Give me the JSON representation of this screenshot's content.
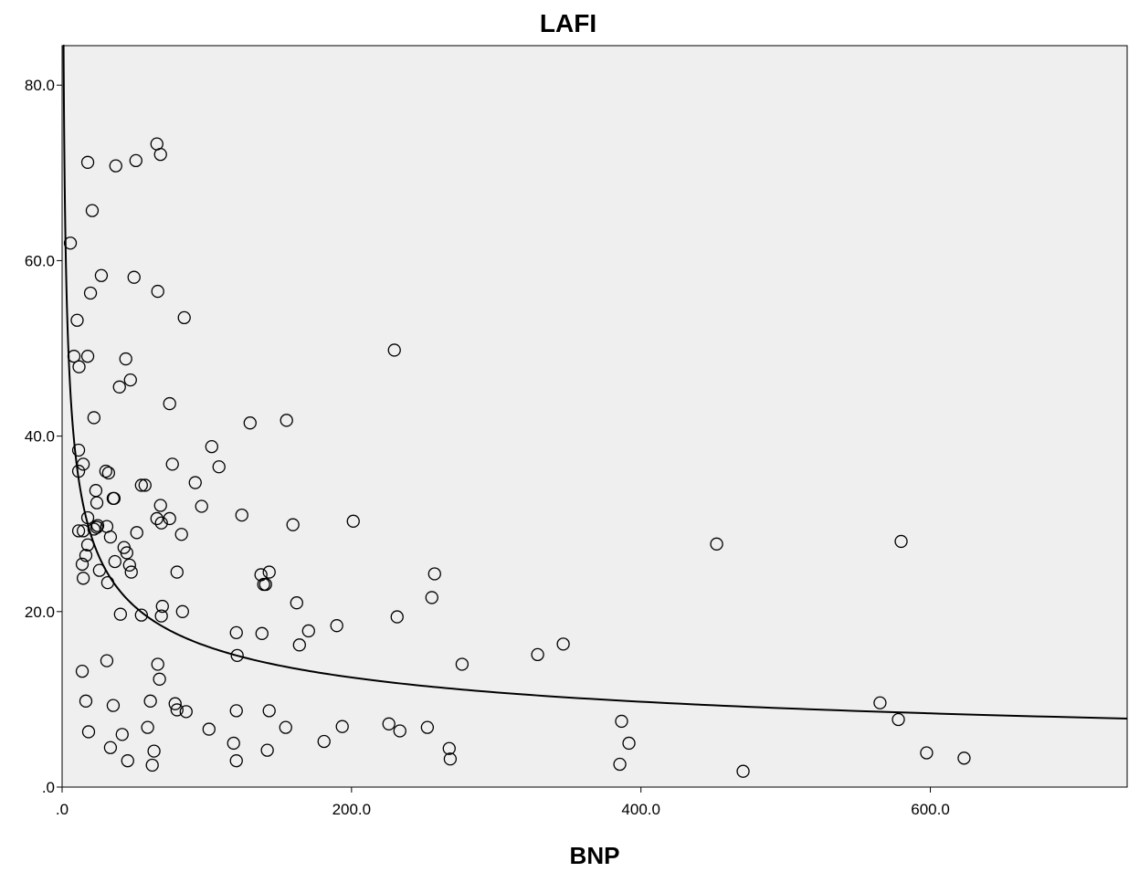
{
  "chart_data": {
    "type": "scatter",
    "title": "LAFI",
    "xlabel": "BNP",
    "ylabel": "",
    "xlim": [
      0,
      736
    ],
    "ylim": [
      0,
      84.5
    ],
    "x_ticks": [
      {
        "value": 0,
        "label": ".0"
      },
      {
        "value": 200,
        "label": "200.0"
      },
      {
        "value": 400,
        "label": "400.0"
      },
      {
        "value": 600,
        "label": "600.0"
      }
    ],
    "y_ticks": [
      {
        "value": 0,
        "label": ".0"
      },
      {
        "value": 20,
        "label": "20.0"
      },
      {
        "value": 40,
        "label": "40.0"
      },
      {
        "value": 60,
        "label": "60.0"
      },
      {
        "value": 80,
        "label": "80.0"
      }
    ],
    "grid": false,
    "legend": "none",
    "plot_background": "#efefef",
    "marker": "open-circle",
    "points": [
      [
        5.7,
        62.0
      ],
      [
        10.4,
        53.2
      ],
      [
        8.2,
        49.1
      ],
      [
        11.7,
        47.9
      ],
      [
        17.7,
        49.1
      ],
      [
        11.4,
        38.4
      ],
      [
        11.4,
        36.0
      ],
      [
        14.6,
        36.8
      ],
      [
        11.4,
        29.2
      ],
      [
        14.6,
        29.2
      ],
      [
        17.7,
        30.7
      ],
      [
        13.9,
        25.4
      ],
      [
        14.6,
        23.8
      ],
      [
        16.4,
        26.4
      ],
      [
        17.7,
        27.6
      ],
      [
        16.4,
        9.8
      ],
      [
        18.3,
        6.3
      ],
      [
        13.9,
        13.2
      ],
      [
        17.7,
        71.2
      ],
      [
        20.8,
        65.7
      ],
      [
        19.6,
        56.3
      ],
      [
        22.0,
        42.1
      ],
      [
        27.1,
        58.3
      ],
      [
        23.3,
        33.8
      ],
      [
        24.0,
        32.4
      ],
      [
        24.0,
        29.6
      ],
      [
        22.0,
        29.4
      ],
      [
        24.6,
        29.8
      ],
      [
        25.8,
        24.7
      ],
      [
        30.2,
        36.0
      ],
      [
        32.1,
        35.8
      ],
      [
        35.9,
        32.9
      ],
      [
        35.3,
        32.9
      ],
      [
        30.9,
        29.7
      ],
      [
        33.4,
        28.5
      ],
      [
        36.5,
        25.7
      ],
      [
        31.5,
        23.3
      ],
      [
        30.9,
        14.4
      ],
      [
        40.3,
        19.7
      ],
      [
        35.3,
        9.3
      ],
      [
        33.4,
        4.5
      ],
      [
        41.5,
        6.0
      ],
      [
        45.3,
        3.0
      ],
      [
        37.1,
        70.8
      ],
      [
        51.0,
        71.4
      ],
      [
        49.7,
        58.1
      ],
      [
        44.0,
        48.8
      ],
      [
        47.2,
        46.4
      ],
      [
        39.6,
        45.6
      ],
      [
        42.8,
        27.3
      ],
      [
        44.7,
        26.7
      ],
      [
        46.6,
        25.3
      ],
      [
        47.8,
        24.5
      ],
      [
        51.6,
        29.0
      ],
      [
        54.8,
        34.4
      ],
      [
        57.3,
        34.4
      ],
      [
        54.8,
        19.6
      ],
      [
        65.5,
        73.3
      ],
      [
        68.0,
        72.1
      ],
      [
        66.1,
        56.5
      ],
      [
        84.4,
        53.5
      ],
      [
        74.3,
        43.7
      ],
      [
        76.2,
        36.8
      ],
      [
        68.0,
        32.1
      ],
      [
        65.5,
        30.6
      ],
      [
        68.6,
        30.1
      ],
      [
        74.3,
        30.6
      ],
      [
        82.5,
        28.8
      ],
      [
        79.4,
        24.5
      ],
      [
        69.3,
        20.6
      ],
      [
        68.6,
        19.5
      ],
      [
        83.2,
        20.0
      ],
      [
        66.1,
        14.0
      ],
      [
        67.3,
        12.3
      ],
      [
        61.0,
        9.8
      ],
      [
        59.1,
        6.8
      ],
      [
        63.5,
        4.1
      ],
      [
        62.3,
        2.5
      ],
      [
        78.1,
        9.5
      ],
      [
        79.4,
        8.8
      ],
      [
        85.7,
        8.6
      ],
      [
        103.4,
        38.8
      ],
      [
        108.4,
        36.5
      ],
      [
        92.0,
        34.7
      ],
      [
        96.4,
        32.0
      ],
      [
        124.2,
        31.0
      ],
      [
        129.9,
        41.5
      ],
      [
        155.1,
        41.8
      ],
      [
        159.5,
        29.9
      ],
      [
        137.4,
        24.2
      ],
      [
        143.1,
        24.5
      ],
      [
        139.3,
        23.1
      ],
      [
        140.6,
        23.1
      ],
      [
        120.4,
        17.6
      ],
      [
        138.1,
        17.5
      ],
      [
        121.0,
        15.0
      ],
      [
        162.1,
        21.0
      ],
      [
        164.0,
        16.2
      ],
      [
        170.3,
        17.8
      ],
      [
        120.4,
        8.7
      ],
      [
        143.1,
        8.7
      ],
      [
        101.5,
        6.6
      ],
      [
        118.5,
        5.0
      ],
      [
        120.4,
        3.0
      ],
      [
        141.8,
        4.2
      ],
      [
        154.5,
        6.8
      ],
      [
        181.0,
        5.2
      ],
      [
        193.6,
        6.9
      ],
      [
        189.8,
        18.4
      ],
      [
        201.2,
        30.3
      ],
      [
        229.6,
        49.8
      ],
      [
        231.5,
        19.4
      ],
      [
        225.8,
        7.2
      ],
      [
        233.4,
        6.4
      ],
      [
        252.4,
        6.8
      ],
      [
        255.5,
        21.6
      ],
      [
        257.4,
        24.3
      ],
      [
        267.5,
        4.4
      ],
      [
        268.2,
        3.2
      ],
      [
        276.4,
        14.0
      ],
      [
        328.6,
        15.1
      ],
      [
        346.3,
        16.3
      ],
      [
        386.6,
        7.5
      ],
      [
        385.4,
        2.6
      ],
      [
        391.7,
        5.0
      ],
      [
        452.3,
        27.7
      ],
      [
        470.6,
        1.8
      ],
      [
        565.2,
        9.6
      ],
      [
        577.9,
        7.7
      ],
      [
        579.8,
        28.0
      ],
      [
        597.4,
        3.9
      ],
      [
        623.3,
        3.3
      ]
    ],
    "fit_line": {
      "type": "power",
      "a": 84.6,
      "b": -0.361,
      "x_range": [
        0.65,
        736
      ]
    }
  }
}
